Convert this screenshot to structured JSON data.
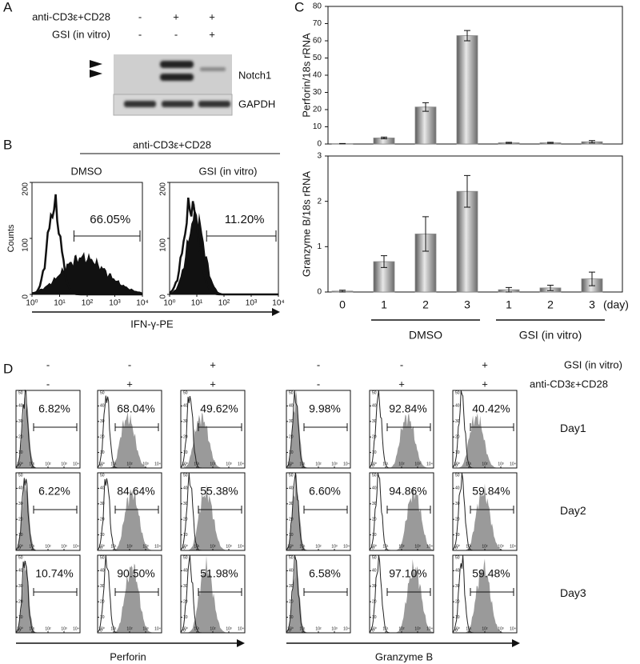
{
  "panel_labels": [
    "A",
    "B",
    "C",
    "D"
  ],
  "panel_a": {
    "rows": [
      {
        "label": "anti-CD3ε+CD28",
        "signs": [
          "-",
          "+",
          "+"
        ]
      },
      {
        "label": "GSI (in vitro)",
        "signs": [
          "-",
          "-",
          "+"
        ]
      }
    ],
    "blots": [
      "Notch1",
      "GAPDH"
    ]
  },
  "panel_b": {
    "header": "anti-CD3ε+CD28",
    "ylabel": "Counts",
    "xlabel": "IFN-γ-PE",
    "ylim": [
      0,
      200
    ],
    "yticks": [
      0,
      100,
      200
    ],
    "xlim": [
      1,
      10000
    ],
    "xticks": [
      {
        "value": 1,
        "label": "10⁰"
      },
      {
        "value": 10,
        "label": "10¹"
      },
      {
        "value": 100,
        "label": "10²"
      },
      {
        "value": 1000,
        "label": "10³"
      },
      {
        "value": 10000,
        "label": "10⁴"
      }
    ],
    "panels": [
      {
        "title": "DMSO",
        "percent": "66.05%"
      },
      {
        "title": "GSI (in vitro)",
        "percent": "11.20%"
      }
    ]
  },
  "chart_data": [
    {
      "type": "bar",
      "ylabel": "Perforin/18s rRNA",
      "color": "#8a8a8a",
      "values": [
        0.2,
        3.5,
        21.5,
        63,
        0.7,
        0.7,
        1.3
      ],
      "errors": [
        0.1,
        0.5,
        2.5,
        3,
        0.3,
        0.3,
        0.7
      ],
      "ylim": [
        0,
        80
      ],
      "yticks": [
        0,
        10,
        20,
        30,
        40,
        50,
        60,
        70,
        80
      ]
    },
    {
      "type": "bar",
      "ylabel": "Granzyme B/18s rRNA",
      "color": "#8a8a8a",
      "categories": [
        "0",
        "1",
        "2",
        "3",
        "1",
        "2",
        "3"
      ],
      "x_unit": "(day)",
      "groups": [
        "DMSO",
        "GSI (in vitro)"
      ],
      "values": [
        0.02,
        0.67,
        1.28,
        2.22,
        0.05,
        0.09,
        0.29
      ],
      "errors": [
        0.02,
        0.13,
        0.38,
        0.35,
        0.05,
        0.06,
        0.15
      ],
      "ylim": [
        0,
        3
      ],
      "yticks": [
        0,
        1,
        2,
        3
      ]
    }
  ],
  "panel_d": {
    "column_rows": [
      {
        "label": "GSI (in vitro)",
        "signs": [
          "-",
          "-",
          "+",
          "-",
          "-",
          "+"
        ]
      },
      {
        "label": "anti-CD3ε+CD28",
        "signs": [
          "-",
          "+",
          "+",
          "-",
          "+",
          "+"
        ]
      }
    ],
    "days": [
      "Day1",
      "Day2",
      "Day3"
    ],
    "markers": [
      "Perforin",
      "Granzyme B"
    ],
    "percents": [
      [
        "6.82%",
        "68.04%",
        "49.62%",
        "9.98%",
        "92.84%",
        "40.42%"
      ],
      [
        "6.22%",
        "84.64%",
        "55.38%",
        "6.60%",
        "94.86%",
        "59.84%"
      ],
      [
        "10.74%",
        "90.50%",
        "51.98%",
        "6.58%",
        "97.10%",
        "59.48%"
      ]
    ],
    "ylim": [
      0,
      50
    ],
    "yticks": [
      0,
      10,
      20,
      30,
      40,
      50
    ],
    "xlim": [
      1,
      10000
    ],
    "xticks": [
      {
        "value": 1,
        "label": "10⁰"
      },
      {
        "value": 10,
        "label": "10¹"
      },
      {
        "value": 100,
        "label": "10²"
      },
      {
        "value": 1000,
        "label": "10³"
      },
      {
        "value": 10000,
        "label": "10⁴"
      }
    ]
  }
}
